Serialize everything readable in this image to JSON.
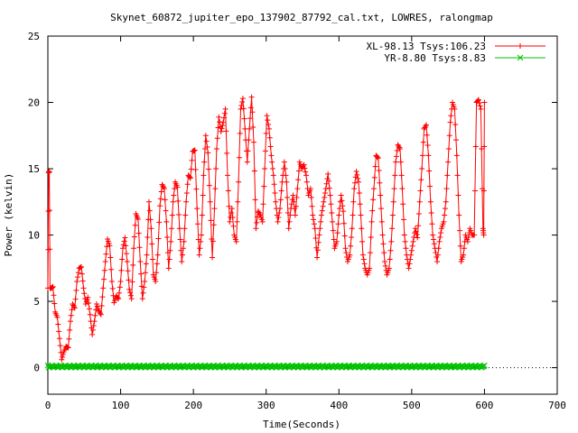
{
  "chart_data": {
    "type": "line",
    "title": "Skynet_60872_jupiter_epo_137902_87792_cal.txt, LOWRES, ralongmap",
    "xlabel": "Time(Seconds)",
    "ylabel": "Power (kelvin)",
    "xlim": [
      0,
      700
    ],
    "ylim": [
      -2,
      25
    ],
    "x_ticks": [
      0,
      100,
      200,
      300,
      400,
      500,
      600,
      700
    ],
    "y_ticks": [
      0,
      5,
      10,
      15,
      20,
      25
    ],
    "grid": false,
    "legend_position": "top-right",
    "series": [
      {
        "name": "XL-98.13 Tsys:106.23",
        "color": "#ff0000",
        "marker": "plus",
        "points": [
          [
            0,
            6.0
          ],
          [
            1,
            14.7
          ],
          [
            2,
            14.8
          ],
          [
            3,
            6.0
          ],
          [
            5,
            6.0
          ],
          [
            7,
            6.1
          ],
          [
            10,
            4.2
          ],
          [
            13,
            3.8
          ],
          [
            16,
            2.2
          ],
          [
            19,
            0.6
          ],
          [
            22,
            1.2
          ],
          [
            25,
            1.6
          ],
          [
            28,
            1.5
          ],
          [
            31,
            3.5
          ],
          [
            34,
            4.8
          ],
          [
            37,
            4.5
          ],
          [
            40,
            6.5
          ],
          [
            43,
            7.5
          ],
          [
            46,
            7.6
          ],
          [
            49,
            6.0
          ],
          [
            52,
            4.8
          ],
          [
            55,
            5.3
          ],
          [
            58,
            4.0
          ],
          [
            61,
            2.5
          ],
          [
            64,
            3.5
          ],
          [
            67,
            4.8
          ],
          [
            70,
            4.3
          ],
          [
            73,
            4.0
          ],
          [
            76,
            6.0
          ],
          [
            79,
            8.0
          ],
          [
            82,
            9.7
          ],
          [
            85,
            9.2
          ],
          [
            88,
            6.5
          ],
          [
            91,
            4.9
          ],
          [
            94,
            5.4
          ],
          [
            97,
            5.2
          ],
          [
            100,
            6.5
          ],
          [
            103,
            9.0
          ],
          [
            106,
            9.8
          ],
          [
            109,
            8.0
          ],
          [
            112,
            5.9
          ],
          [
            115,
            5.2
          ],
          [
            118,
            9.0
          ],
          [
            121,
            11.6
          ],
          [
            124,
            11.2
          ],
          [
            127,
            8.0
          ],
          [
            130,
            5.2
          ],
          [
            133,
            6.5
          ],
          [
            136,
            8.5
          ],
          [
            139,
            12.5
          ],
          [
            142,
            10.5
          ],
          [
            145,
            7.0
          ],
          [
            148,
            6.5
          ],
          [
            151,
            8.5
          ],
          [
            154,
            12.2
          ],
          [
            157,
            13.8
          ],
          [
            160,
            13.5
          ],
          [
            163,
            11.0
          ],
          [
            166,
            7.5
          ],
          [
            169,
            9.5
          ],
          [
            172,
            12.5
          ],
          [
            175,
            14.0
          ],
          [
            178,
            13.6
          ],
          [
            181,
            10.5
          ],
          [
            184,
            8.0
          ],
          [
            187,
            9.5
          ],
          [
            190,
            12.5
          ],
          [
            193,
            14.5
          ],
          [
            196,
            14.3
          ],
          [
            199,
            16.3
          ],
          [
            202,
            16.4
          ],
          [
            205,
            12.0
          ],
          [
            208,
            8.5
          ],
          [
            211,
            10.0
          ],
          [
            214,
            14.5
          ],
          [
            217,
            17.5
          ],
          [
            220,
            16.2
          ],
          [
            223,
            12.5
          ],
          [
            226,
            8.3
          ],
          [
            229,
            12.0
          ],
          [
            232,
            16.5
          ],
          [
            235,
            18.9
          ],
          [
            238,
            17.8
          ],
          [
            241,
            18.5
          ],
          [
            244,
            19.5
          ],
          [
            247,
            14.5
          ],
          [
            250,
            11.0
          ],
          [
            253,
            12.0
          ],
          [
            256,
            10.0
          ],
          [
            259,
            9.5
          ],
          [
            262,
            14.0
          ],
          [
            265,
            19.5
          ],
          [
            268,
            20.3
          ],
          [
            271,
            18.0
          ],
          [
            274,
            15.5
          ],
          [
            277,
            18.0
          ],
          [
            280,
            20.4
          ],
          [
            283,
            17.0
          ],
          [
            286,
            10.5
          ],
          [
            289,
            11.8
          ],
          [
            292,
            11.5
          ],
          [
            295,
            11.0
          ],
          [
            298,
            15.0
          ],
          [
            301,
            19.0
          ],
          [
            304,
            18.0
          ],
          [
            307,
            16.0
          ],
          [
            310,
            14.5
          ],
          [
            313,
            12.5
          ],
          [
            316,
            11.0
          ],
          [
            319,
            12.0
          ],
          [
            322,
            14.0
          ],
          [
            325,
            15.5
          ],
          [
            328,
            14.0
          ],
          [
            331,
            10.5
          ],
          [
            334,
            12.0
          ],
          [
            337,
            13.0
          ],
          [
            340,
            11.5
          ],
          [
            343,
            13.5
          ],
          [
            346,
            15.5
          ],
          [
            349,
            15.0
          ],
          [
            352,
            15.3
          ],
          [
            355,
            14.5
          ],
          [
            358,
            13.0
          ],
          [
            361,
            13.5
          ],
          [
            364,
            11.5
          ],
          [
            367,
            10.5
          ],
          [
            370,
            8.3
          ],
          [
            373,
            10.0
          ],
          [
            376,
            11.5
          ],
          [
            379,
            12.5
          ],
          [
            382,
            13.5
          ],
          [
            385,
            14.6
          ],
          [
            388,
            13.0
          ],
          [
            391,
            11.0
          ],
          [
            394,
            9.0
          ],
          [
            397,
            9.5
          ],
          [
            400,
            11.5
          ],
          [
            403,
            13.0
          ],
          [
            406,
            11.8
          ],
          [
            409,
            9.0
          ],
          [
            412,
            8.0
          ],
          [
            415,
            8.5
          ],
          [
            418,
            10.5
          ],
          [
            421,
            13.5
          ],
          [
            424,
            14.8
          ],
          [
            427,
            14.0
          ],
          [
            430,
            11.5
          ],
          [
            433,
            8.5
          ],
          [
            436,
            7.5
          ],
          [
            439,
            7.0
          ],
          [
            442,
            7.5
          ],
          [
            445,
            11.0
          ],
          [
            448,
            13.5
          ],
          [
            451,
            16.0
          ],
          [
            454,
            15.8
          ],
          [
            457,
            13.0
          ],
          [
            460,
            10.0
          ],
          [
            463,
            8.0
          ],
          [
            466,
            7.0
          ],
          [
            469,
            7.5
          ],
          [
            472,
            9.5
          ],
          [
            475,
            12.5
          ],
          [
            478,
            15.5
          ],
          [
            481,
            16.8
          ],
          [
            484,
            16.5
          ],
          [
            487,
            13.5
          ],
          [
            490,
            10.0
          ],
          [
            493,
            8.5
          ],
          [
            496,
            7.5
          ],
          [
            499,
            8.5
          ],
          [
            502,
            9.5
          ],
          [
            505,
            10.5
          ],
          [
            508,
            9.8
          ],
          [
            511,
            12.5
          ],
          [
            514,
            15.0
          ],
          [
            517,
            18.0
          ],
          [
            520,
            18.3
          ],
          [
            523,
            16.0
          ],
          [
            526,
            12.5
          ],
          [
            529,
            10.0
          ],
          [
            532,
            9.0
          ],
          [
            535,
            8.0
          ],
          [
            538,
            9.5
          ],
          [
            541,
            10.5
          ],
          [
            544,
            11.0
          ],
          [
            547,
            12.5
          ],
          [
            550,
            15.5
          ],
          [
            553,
            18.5
          ],
          [
            556,
            20.0
          ],
          [
            559,
            19.5
          ],
          [
            562,
            16.0
          ],
          [
            565,
            11.5
          ],
          [
            568,
            8.0
          ],
          [
            571,
            8.5
          ],
          [
            574,
            10.0
          ],
          [
            577,
            9.5
          ],
          [
            580,
            10.5
          ],
          [
            583,
            10.0
          ],
          [
            586,
            10.0
          ],
          [
            589,
            20.0
          ],
          [
            592,
            20.2
          ],
          [
            595,
            19.5
          ],
          [
            598,
            10.5
          ],
          [
            599,
            10.0
          ],
          [
            600,
            20.0
          ]
        ]
      },
      {
        "name": "YR-8.80 Tsys:8.83",
        "color": "#00c000",
        "marker": "cross",
        "points": [
          [
            0,
            0.1
          ],
          [
            600,
            0.1
          ]
        ]
      }
    ]
  }
}
